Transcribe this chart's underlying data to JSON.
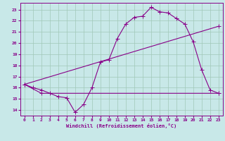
{
  "xlabel": "Windchill (Refroidissement éolien,°C)",
  "bg_color": "#c8e8e8",
  "grid_color": "#a0c8b8",
  "line_color": "#880088",
  "ylim": [
    13.5,
    23.6
  ],
  "xlim": [
    -0.5,
    23.5
  ],
  "yticks": [
    14,
    15,
    16,
    17,
    18,
    19,
    20,
    21,
    22,
    23
  ],
  "xticks": [
    0,
    1,
    2,
    3,
    4,
    5,
    6,
    7,
    8,
    9,
    10,
    11,
    12,
    13,
    14,
    15,
    16,
    17,
    18,
    19,
    20,
    21,
    22,
    23
  ],
  "line1_x": [
    0,
    1,
    2,
    3,
    4,
    5,
    6,
    7,
    8,
    9,
    10,
    11,
    12,
    13,
    14,
    15,
    16,
    17,
    18,
    19,
    20,
    21,
    22,
    23
  ],
  "line1_y": [
    16.3,
    16.0,
    15.8,
    15.5,
    15.2,
    15.1,
    13.8,
    14.5,
    16.0,
    18.3,
    18.5,
    20.4,
    21.7,
    22.3,
    22.4,
    23.2,
    22.8,
    22.7,
    22.2,
    21.7,
    20.1,
    17.6,
    15.8,
    15.5
  ],
  "line2_x": [
    0,
    23
  ],
  "line2_y": [
    16.3,
    21.5
  ],
  "line3_x": [
    0,
    2,
    23
  ],
  "line3_y": [
    16.3,
    15.5,
    15.5
  ]
}
